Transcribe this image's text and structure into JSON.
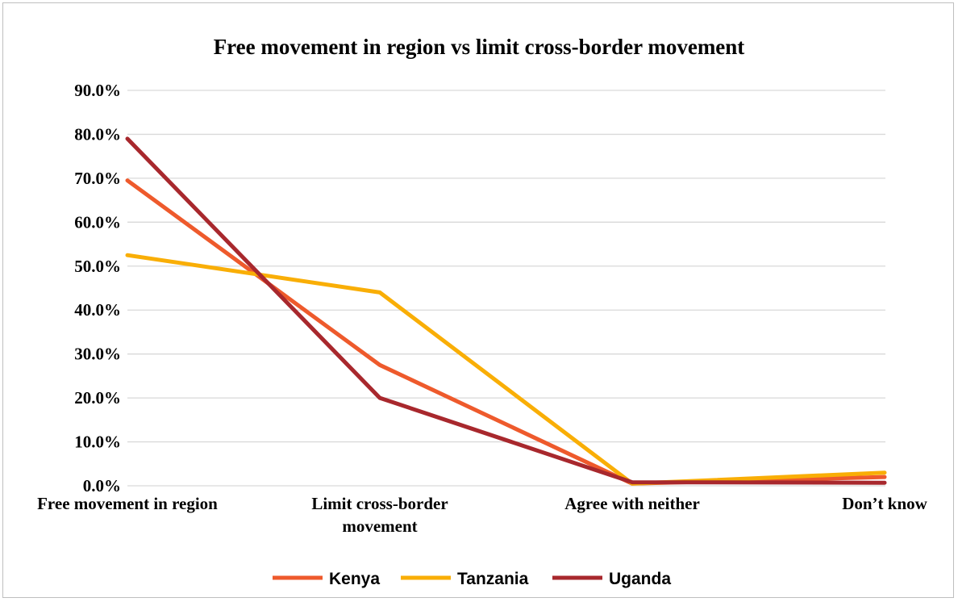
{
  "chart_data": {
    "type": "line",
    "title": "Free movement in region vs limit cross-border movement",
    "xlabel": "",
    "ylabel": "",
    "categories": [
      [
        "Free movement in region"
      ],
      [
        "Limit cross-border",
        "movement"
      ],
      [
        "Agree with neither"
      ],
      [
        "Don’t know"
      ]
    ],
    "ylim": [
      0,
      90
    ],
    "yticks": [
      "0.0%",
      "10.0%",
      "20.0%",
      "30.0%",
      "40.0%",
      "50.0%",
      "60.0%",
      "70.0%",
      "80.0%",
      "90.0%"
    ],
    "grid": true,
    "legend_position": "bottom",
    "series": [
      {
        "name": "Kenya",
        "color": "#EE5A2C",
        "values": [
          69.5,
          27.5,
          0.5,
          2.0
        ]
      },
      {
        "name": "Tanzania",
        "color": "#F9AE06",
        "values": [
          52.5,
          44.0,
          0.5,
          3.0
        ]
      },
      {
        "name": "Uganda",
        "color": "#A8282D",
        "values": [
          79.0,
          20.0,
          0.8,
          0.7
        ]
      }
    ]
  }
}
